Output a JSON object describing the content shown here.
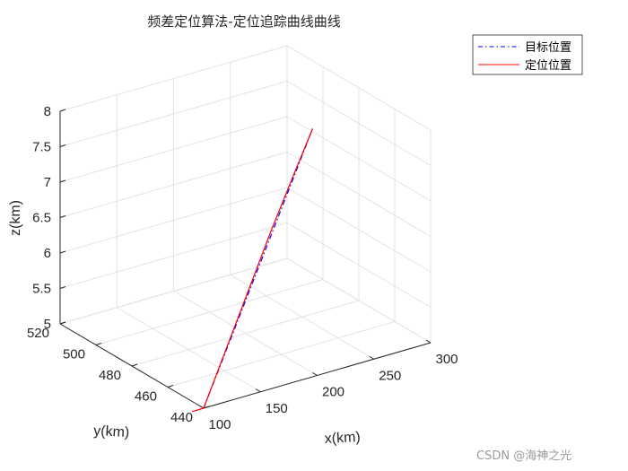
{
  "chart_data": {
    "type": "line3d",
    "title": "频差定位算法-定位追踪曲线曲线",
    "xlabel": "x(km)",
    "ylabel": "y(km)",
    "zlabel": "z(km)",
    "xlim": [
      100,
      300
    ],
    "ylim": [
      440,
      520
    ],
    "zlim": [
      5,
      8
    ],
    "xticks": [
      "100",
      "150",
      "200",
      "250",
      "300"
    ],
    "yticks": [
      "440",
      "460",
      "480",
      "500",
      "520"
    ],
    "zticks": [
      "5",
      "5.5",
      "6",
      "6.5",
      "7",
      "7.5",
      "8"
    ],
    "grid": true,
    "legend_position": "top-right",
    "series": [
      {
        "name": "目标位置",
        "color": "#0000ff",
        "line_style": "dash-dot",
        "points": [
          [
            100,
            440,
            5.0
          ],
          [
            196,
            440,
            8.5
          ]
        ]
      },
      {
        "name": "定位位置",
        "color": "#ff0000",
        "line_style": "solid",
        "points": [
          [
            100,
            440,
            5.0
          ],
          [
            90,
            440,
            5.0
          ],
          [
            100,
            440,
            5.0
          ],
          [
            120,
            440,
            5.75
          ],
          [
            140,
            440,
            6.5
          ],
          [
            160,
            440,
            7.25
          ],
          [
            180,
            440,
            7.95
          ],
          [
            196,
            440,
            8.5
          ]
        ]
      }
    ]
  },
  "watermark": "CSDN @海神之光"
}
